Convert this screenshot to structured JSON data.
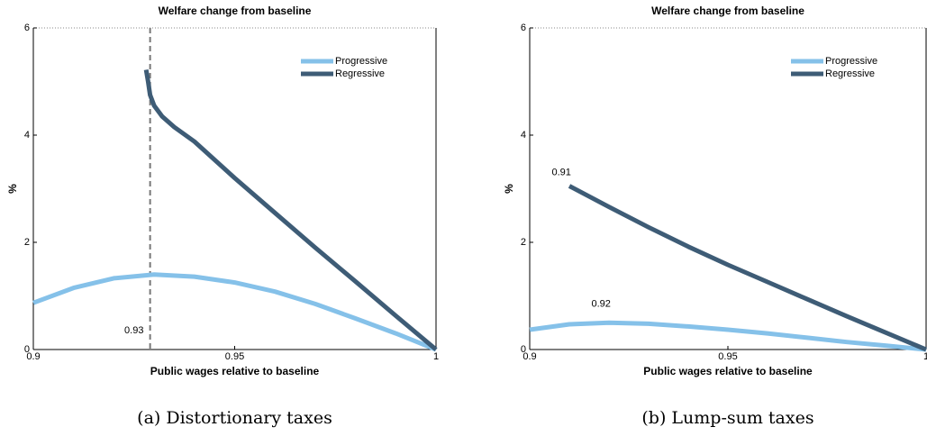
{
  "chart_data": [
    {
      "type": "line",
      "title": "Welfare change from baseline",
      "xlabel": "Public wages relative to baseline",
      "ylabel": "%",
      "caption": "(a) Distortionary taxes",
      "xlim": [
        0.9,
        1
      ],
      "ylim": [
        0,
        6
      ],
      "xticks": [
        0.9,
        0.95,
        1
      ],
      "yticks": [
        0,
        2,
        4,
        6
      ],
      "legend": "upper right",
      "vline": 0.929,
      "annotations": [
        {
          "text": "0.93",
          "x": 0.925,
          "y": 0.35
        }
      ],
      "series": [
        {
          "name": "Progressive",
          "color": "#85c1e9",
          "x": [
            0.9,
            0.91,
            0.92,
            0.93,
            0.94,
            0.95,
            0.96,
            0.97,
            0.98,
            0.99,
            1
          ],
          "values": [
            0.87,
            1.15,
            1.33,
            1.4,
            1.36,
            1.25,
            1.08,
            0.85,
            0.58,
            0.3,
            0
          ]
        },
        {
          "name": "Regressive",
          "color": "#3e5c76",
          "x": [
            0.928,
            0.9285,
            0.929,
            0.93,
            0.932,
            0.935,
            0.94,
            0.95,
            0.96,
            0.97,
            0.98,
            0.99,
            1
          ],
          "values": [
            5.22,
            5.0,
            4.75,
            4.55,
            4.35,
            4.15,
            3.88,
            3.2,
            2.55,
            1.9,
            1.27,
            0.63,
            0
          ]
        }
      ]
    },
    {
      "type": "line",
      "title": "Welfare change from baseline",
      "xlabel": "Public wages relative to baseline",
      "ylabel": "%",
      "caption": "(b) Lump-sum taxes",
      "xlim": [
        0.9,
        1
      ],
      "ylim": [
        0,
        6
      ],
      "xticks": [
        0.9,
        0.95,
        1
      ],
      "yticks": [
        0,
        2,
        4,
        6
      ],
      "legend": "upper right",
      "annotations": [
        {
          "text": "0.91",
          "x": 0.908,
          "y": 3.3
        },
        {
          "text": "0.92",
          "x": 0.918,
          "y": 0.85
        }
      ],
      "series": [
        {
          "name": "Progressive",
          "color": "#85c1e9",
          "x": [
            0.9,
            0.91,
            0.92,
            0.93,
            0.94,
            0.95,
            0.96,
            0.97,
            0.98,
            0.99,
            1
          ],
          "values": [
            0.37,
            0.47,
            0.5,
            0.48,
            0.43,
            0.37,
            0.3,
            0.22,
            0.14,
            0.07,
            0
          ]
        },
        {
          "name": "Regressive",
          "color": "#3e5c76",
          "x": [
            0.91,
            0.92,
            0.93,
            0.94,
            0.95,
            0.96,
            0.97,
            0.98,
            0.99,
            1
          ],
          "values": [
            3.05,
            2.66,
            2.28,
            1.92,
            1.58,
            1.26,
            0.94,
            0.62,
            0.31,
            0
          ]
        }
      ]
    }
  ]
}
